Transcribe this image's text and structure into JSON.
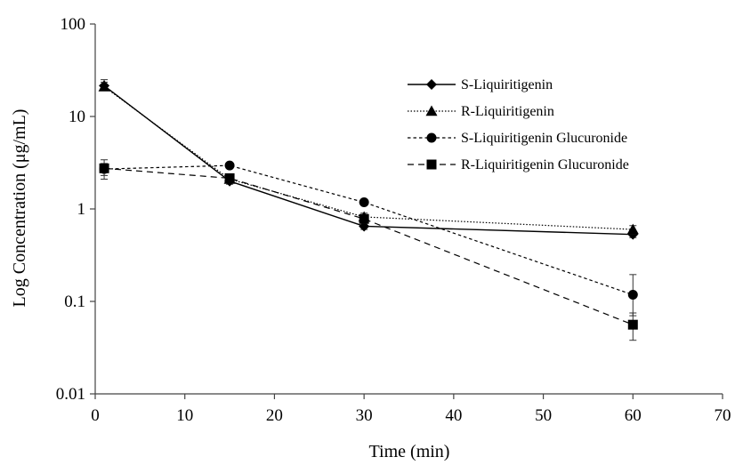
{
  "chart_data": {
    "type": "line",
    "xlabel": "Time (min)",
    "ylabel": "Log Concentration (μg/mL)",
    "xlim": [
      0,
      70
    ],
    "ylim": [
      0.01,
      100
    ],
    "y_scale": "log",
    "x_ticks": [
      0,
      10,
      20,
      30,
      40,
      50,
      60,
      70
    ],
    "y_ticks": [
      0.01,
      0.1,
      1,
      10,
      100
    ],
    "y_tick_labels": [
      "0.01",
      "0.1",
      "1",
      "10",
      "100"
    ],
    "grid": false,
    "legend_position": "top-right",
    "series": [
      {
        "name": "S-Liquiritigenin",
        "marker": "diamond",
        "line": "solid",
        "x": [
          1,
          15,
          30,
          60
        ],
        "y": [
          21.5,
          2.0,
          0.65,
          0.53
        ],
        "err_low": [
          19.0,
          1.85,
          0.6,
          0.49
        ],
        "err_high": [
          25.0,
          2.2,
          0.72,
          0.58
        ]
      },
      {
        "name": "R-Liquiritigenin",
        "marker": "triangle",
        "line": "dotted",
        "x": [
          1,
          15,
          30,
          60
        ],
        "y": [
          21.0,
          2.1,
          0.82,
          0.6
        ],
        "err_low": [
          19.0,
          1.95,
          0.75,
          0.54
        ],
        "err_high": [
          23.5,
          2.3,
          0.9,
          0.66
        ]
      },
      {
        "name": "S-Liquiritigenin Glucuronide",
        "marker": "circle",
        "line": "short-dash",
        "x": [
          1,
          15,
          30,
          60
        ],
        "y": [
          2.7,
          2.95,
          1.18,
          0.118
        ],
        "err_low": [
          2.3,
          2.8,
          1.1,
          0.07
        ],
        "err_high": [
          3.1,
          3.1,
          1.26,
          0.195
        ]
      },
      {
        "name": "R-Liquiritigenin Glucuronide",
        "marker": "square",
        "line": "long-dash",
        "x": [
          1,
          15,
          30,
          60
        ],
        "y": [
          2.75,
          2.15,
          0.78,
          0.056
        ],
        "err_low": [
          2.1,
          2.0,
          0.7,
          0.038
        ],
        "err_high": [
          3.4,
          2.3,
          0.86,
          0.075
        ]
      }
    ]
  }
}
